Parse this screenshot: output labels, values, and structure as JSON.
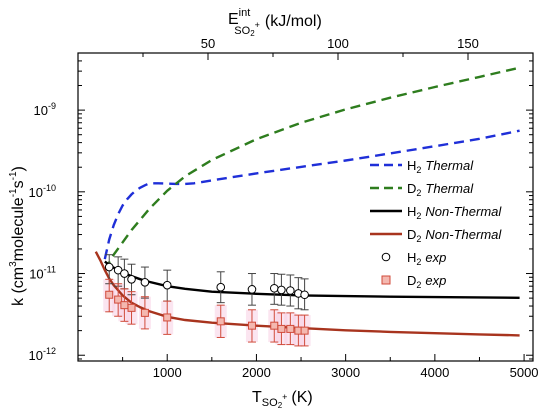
{
  "chart_data": {
    "type": "line",
    "title": "",
    "xlabel": {
      "main": "T",
      "sub": "SO",
      "sub2": "2",
      "sup": "+",
      "unit": "(K)"
    },
    "x2label": {
      "main": "E",
      "sup": "int",
      "sub": "SO",
      "sub2": "2",
      "sup2": "+",
      "unit": "(kJ/mol)"
    },
    "ylabel": {
      "pre": "k (cm",
      "e1": "3",
      "mid1": "molecule",
      "e2": "-1",
      "mid2": "s",
      "e3": "-1",
      "post": ")"
    },
    "xlim": [
      0,
      5100
    ],
    "x2lim": [
      0,
      175
    ],
    "ylim": [
      8.5e-13,
      5e-09
    ],
    "yscale": "log",
    "x_ticks": [
      1000,
      2000,
      3000,
      4000,
      5000
    ],
    "x2_ticks": [
      50,
      100,
      150
    ],
    "y_ticks": [
      {
        "value": 1e-12,
        "base": "10",
        "exp": "-12"
      },
      {
        "value": 1e-11,
        "base": "10",
        "exp": "-11"
      },
      {
        "value": 1e-10,
        "base": "10",
        "exp": "-10"
      },
      {
        "value": 1e-09,
        "base": "10",
        "exp": "-9"
      }
    ],
    "legend_position": "right",
    "series": [
      {
        "name": {
          "main": "H",
          "sub": "2",
          "rest": "Thermal"
        },
        "style": "dashed",
        "color": "#1f2fd8",
        "points": [
          [
            300,
            1.5e-11
          ],
          [
            350,
            2.6e-11
          ],
          [
            400,
            3.9e-11
          ],
          [
            450,
            5.3e-11
          ],
          [
            500,
            6.8e-11
          ],
          [
            550,
            8.1e-11
          ],
          [
            600,
            9.3e-11
          ],
          [
            650,
            1.04e-10
          ],
          [
            700,
            1.13e-10
          ],
          [
            750,
            1.2e-10
          ],
          [
            800,
            1.27e-10
          ],
          [
            900,
            1.27e-10
          ],
          [
            1000,
            1.26e-10
          ],
          [
            1100,
            1.25e-10
          ],
          [
            1200,
            1.25e-10
          ],
          [
            1300,
            1.27e-10
          ],
          [
            1500,
            1.38e-10
          ],
          [
            2000,
            1.68e-10
          ],
          [
            2500,
            2.02e-10
          ],
          [
            3000,
            2.42e-10
          ],
          [
            3500,
            2.95e-10
          ],
          [
            4000,
            3.62e-10
          ],
          [
            4500,
            4.45e-10
          ],
          [
            4950,
            5.6e-10
          ]
        ]
      },
      {
        "name": {
          "main": "D",
          "sub": "2",
          "rest": "Thermal"
        },
        "style": "dashed",
        "color": "#2e7d1e",
        "points": [
          [
            300,
            1.1e-11
          ],
          [
            400,
            1.7e-11
          ],
          [
            600,
            3.4e-11
          ],
          [
            800,
            6.2e-11
          ],
          [
            1000,
            1.03e-10
          ],
          [
            1200,
            1.55e-10
          ],
          [
            1500,
            2.45e-10
          ],
          [
            2000,
            4.4e-10
          ],
          [
            2500,
            7e-10
          ],
          [
            3000,
            1.02e-09
          ],
          [
            3500,
            1.42e-09
          ],
          [
            4000,
            1.92e-09
          ],
          [
            4500,
            2.55e-09
          ],
          [
            4950,
            3.3e-09
          ]
        ]
      },
      {
        "name": {
          "main": "H",
          "sub": "2",
          "rest": "Non-Thermal"
        },
        "style": "solid",
        "color": "#000000",
        "points": [
          [
            300,
            1.4e-11
          ],
          [
            400,
            1.18e-11
          ],
          [
            500,
            1.03e-11
          ],
          [
            600,
            9.3e-12
          ],
          [
            700,
            8.5e-12
          ],
          [
            800,
            7.9e-12
          ],
          [
            1000,
            7e-12
          ],
          [
            1200,
            6.5e-12
          ],
          [
            1500,
            6e-12
          ],
          [
            2000,
            5.65e-12
          ],
          [
            2500,
            5.4e-12
          ],
          [
            3000,
            5.3e-12
          ],
          [
            3500,
            5.2e-12
          ],
          [
            4000,
            5.15e-12
          ],
          [
            4500,
            5.1e-12
          ],
          [
            4950,
            5.05e-12
          ]
        ]
      },
      {
        "name": {
          "main": "D",
          "sub": "2",
          "rest": "Non-Thermal"
        },
        "style": "solid",
        "color": "#a8341e",
        "points": [
          [
            200,
            1.85e-11
          ],
          [
            250,
            1.45e-11
          ],
          [
            300,
            1.1e-11
          ],
          [
            350,
            8.7e-12
          ],
          [
            400,
            7.2e-12
          ],
          [
            500,
            5.4e-12
          ],
          [
            600,
            4.4e-12
          ],
          [
            700,
            3.85e-12
          ],
          [
            800,
            3.45e-12
          ],
          [
            1000,
            2.95e-12
          ],
          [
            1200,
            2.7e-12
          ],
          [
            1500,
            2.5e-12
          ],
          [
            2000,
            2.3e-12
          ],
          [
            2500,
            2.15e-12
          ],
          [
            3000,
            2.02e-12
          ],
          [
            3500,
            1.93e-12
          ],
          [
            4000,
            1.86e-12
          ],
          [
            4500,
            1.8e-12
          ],
          [
            4950,
            1.75e-12
          ]
        ]
      },
      {
        "name": {
          "main": "H",
          "sub": "2",
          "rest": "exp"
        },
        "style": "markers",
        "marker": "circle",
        "color": "#000000",
        "points": [
          {
            "x": 350,
            "y": 1.2e-11,
            "lo": 7.5e-12,
            "hi": 1.7e-11
          },
          {
            "x": 450,
            "y": 1.1e-11,
            "lo": 7e-12,
            "hi": 1.6e-11
          },
          {
            "x": 520,
            "y": 1e-11,
            "lo": 6.5e-12,
            "hi": 1.5e-11
          },
          {
            "x": 600,
            "y": 8.5e-12,
            "lo": 5.5e-12,
            "hi": 1.3e-11
          },
          {
            "x": 750,
            "y": 7.8e-12,
            "lo": 5e-12,
            "hi": 1.2e-11
          },
          {
            "x": 1000,
            "y": 7.2e-12,
            "lo": 4.6e-12,
            "hi": 1.1e-11
          },
          {
            "x": 1600,
            "y": 6.8e-12,
            "lo": 4.4e-12,
            "hi": 1.05e-11
          },
          {
            "x": 1950,
            "y": 6.4e-12,
            "lo": 4.1e-12,
            "hi": 1e-11
          },
          {
            "x": 2200,
            "y": 6.6e-12,
            "lo": 4.2e-12,
            "hi": 1e-11
          },
          {
            "x": 2280,
            "y": 6.3e-12,
            "lo": 4.1e-12,
            "hi": 9.8e-12
          },
          {
            "x": 2380,
            "y": 6.2e-12,
            "lo": 4e-12,
            "hi": 9.6e-12
          },
          {
            "x": 2470,
            "y": 5.7e-12,
            "lo": 3.7e-12,
            "hi": 8.9e-12
          },
          {
            "x": 2540,
            "y": 5.5e-12,
            "lo": 3.6e-12,
            "hi": 8.6e-12
          }
        ]
      },
      {
        "name": {
          "main": "D",
          "sub": "2",
          "rest": "exp"
        },
        "style": "markers",
        "marker": "square",
        "color": "#d04a3a",
        "points": [
          {
            "x": 350,
            "y": 5.5e-12,
            "lo": 3.4e-12,
            "hi": 8.5e-12
          },
          {
            "x": 450,
            "y": 4.8e-12,
            "lo": 3e-12,
            "hi": 7.5e-12
          },
          {
            "x": 520,
            "y": 4.1e-12,
            "lo": 2.6e-12,
            "hi": 6.5e-12
          },
          {
            "x": 600,
            "y": 3.8e-12,
            "lo": 2.4e-12,
            "hi": 6e-12
          },
          {
            "x": 750,
            "y": 3.3e-12,
            "lo": 2.1e-12,
            "hi": 5.2e-12
          },
          {
            "x": 1000,
            "y": 2.9e-12,
            "lo": 1.8e-12,
            "hi": 4.6e-12
          },
          {
            "x": 1600,
            "y": 2.6e-12,
            "lo": 1.65e-12,
            "hi": 4.1e-12
          },
          {
            "x": 1950,
            "y": 2.3e-12,
            "lo": 1.45e-12,
            "hi": 3.6e-12
          },
          {
            "x": 2200,
            "y": 2.3e-12,
            "lo": 1.45e-12,
            "hi": 3.6e-12
          },
          {
            "x": 2280,
            "y": 2.1e-12,
            "lo": 1.35e-12,
            "hi": 3.3e-12
          },
          {
            "x": 2380,
            "y": 2.1e-12,
            "lo": 1.35e-12,
            "hi": 3.3e-12
          },
          {
            "x": 2470,
            "y": 2e-12,
            "lo": 1.3e-12,
            "hi": 3.1e-12
          },
          {
            "x": 2540,
            "y": 2e-12,
            "lo": 1.3e-12,
            "hi": 3.1e-12
          }
        ]
      }
    ]
  }
}
